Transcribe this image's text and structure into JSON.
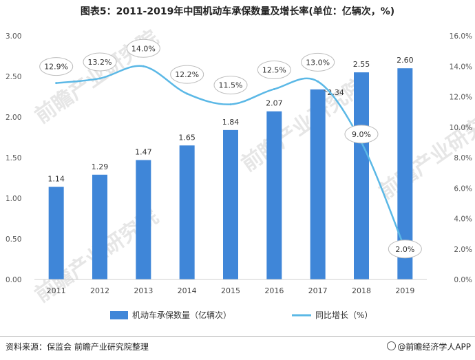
{
  "title": "图表5：2011-2019年中国机动车承保数量及增长率(单位：亿辆次，%)",
  "footer": {
    "source": "资料来源：保监会 前瞻产业研究院整理",
    "brand": "@前瞻经济学人APP"
  },
  "watermark": "前瞻产业研究院",
  "colors": {
    "bar": "#3f86d8",
    "line": "#5bb8e6",
    "badge_border": "#bdbdbd"
  },
  "chart_data": {
    "type": "bar+line",
    "categories": [
      "2011",
      "2012",
      "2013",
      "2014",
      "2015",
      "2016",
      "2017",
      "2018",
      "2019"
    ],
    "series": [
      {
        "name": "机动车承保数量（亿辆次）",
        "type": "bar",
        "axis": "left",
        "values": [
          1.14,
          1.29,
          1.47,
          1.65,
          1.84,
          2.07,
          2.34,
          2.55,
          2.6
        ],
        "labels": [
          "1.14",
          "1.29",
          "1.47",
          "1.65",
          "1.84",
          "2.07",
          "2.34",
          "2.55",
          "2.60"
        ]
      },
      {
        "name": "同比增长（%）",
        "type": "line",
        "axis": "right",
        "values": [
          12.9,
          13.2,
          14.0,
          12.2,
          11.5,
          12.5,
          13.0,
          9.0,
          2.0
        ],
        "labels": [
          "12.9%",
          "13.2%",
          "14.0%",
          "12.2%",
          "11.5%",
          "12.5%",
          "13.0%",
          "9.0%",
          "2.0%"
        ]
      }
    ],
    "y_left": {
      "min": 0,
      "max": 3.0,
      "ticks": [
        "0.00",
        "0.50",
        "1.00",
        "1.50",
        "2.00",
        "2.50",
        "3.00"
      ]
    },
    "y_right": {
      "min": 0,
      "max": 16,
      "ticks": [
        "0.0%",
        "2.0%",
        "4.0%",
        "6.0%",
        "8.0%",
        "10.0%",
        "12.0%",
        "14.0%",
        "16.0%"
      ]
    },
    "legend_position": "bottom"
  }
}
